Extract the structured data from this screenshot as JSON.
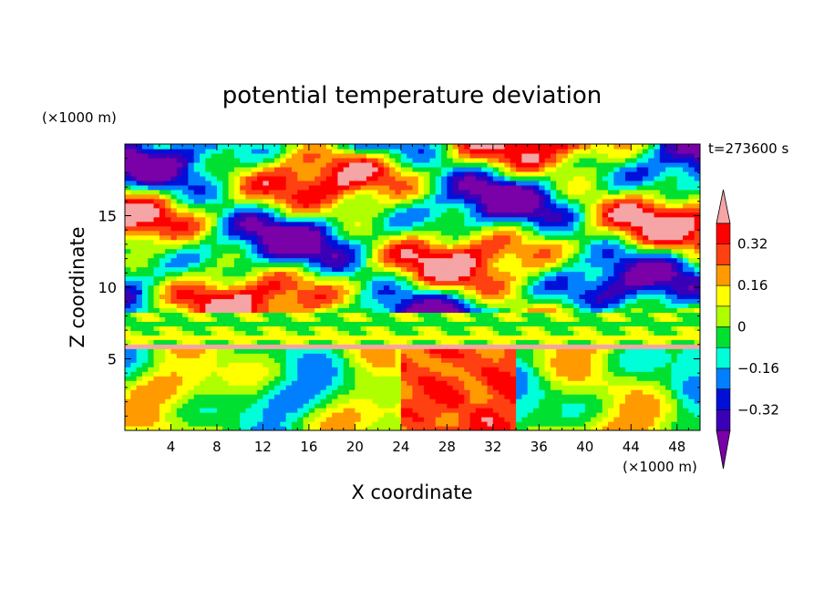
{
  "chart_data": {
    "type": "heatmap",
    "title": "potential temperature deviation",
    "xlabel": "X coordinate",
    "ylabel": "Z coordinate",
    "x_unit": "(×1000 m)",
    "y_unit": "(×1000 m)",
    "time_label": "t=273600 s",
    "xlim": [
      0,
      50
    ],
    "ylim": [
      0,
      20
    ],
    "x_ticks": [
      4,
      8,
      12,
      16,
      20,
      24,
      28,
      32,
      36,
      40,
      44,
      48
    ],
    "x_tick_labels": [
      "4",
      "8",
      "12",
      "16",
      "20",
      "24",
      "28",
      "32",
      "36",
      "40",
      "44",
      "48"
    ],
    "y_ticks": [
      5,
      10,
      15
    ],
    "y_tick_labels": [
      "5",
      "10",
      "15"
    ],
    "colorbar": {
      "levels": [
        -0.4,
        -0.32,
        -0.24,
        -0.16,
        -0.08,
        0,
        0.08,
        0.16,
        0.24,
        0.32,
        0.4
      ],
      "labeled_levels": [
        0.32,
        0.16,
        0,
        -0.16,
        -0.32
      ],
      "labels": [
        "0.32",
        "0.16",
        "0",
        "−0.16",
        "−0.32"
      ],
      "colors": [
        "#7a00a8",
        "#3a00b8",
        "#0010d8",
        "#0080ff",
        "#00ffd8",
        "#00e030",
        "#b0ff00",
        "#ffff00",
        "#ff9a00",
        "#ff4010",
        "#ff0000",
        "#f5a5a5"
      ],
      "extend": "both"
    }
  }
}
